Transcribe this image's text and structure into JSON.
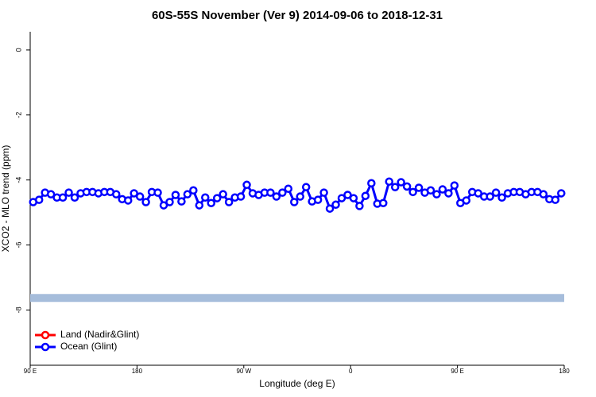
{
  "chart_data": {
    "type": "line",
    "title": "60S-55S November (Ver 9)   2014-09-06 to 2018-12-31",
    "x_label": "Longitude (deg E)",
    "y_label": "XCO2 - MLO trend (ppm)",
    "xlim": [
      90,
      540
    ],
    "xticks": [
      {
        "value": 90,
        "label": "90 E"
      },
      180,
      {
        "value": 270,
        "label": "90 W"
      },
      {
        "value": 360,
        "label": "0"
      },
      {
        "value": 450,
        "label": "90 E"
      },
      {
        "value": 540,
        "label": "180"
      }
    ],
    "ylim": [
      -9.7,
      0.56
    ],
    "yticks": [
      0,
      -2,
      -4,
      -6,
      -8
    ],
    "legend": "bottom-left",
    "band": {
      "value": -7.63,
      "color": "#a6bddb"
    },
    "x": [
      92.5,
      97.5,
      102.5,
      107.5,
      112.5,
      117.5,
      122.5,
      127.5,
      132.5,
      137.5,
      142.5,
      147.5,
      152.5,
      157.5,
      162.5,
      167.5,
      172.5,
      177.5,
      182.5,
      187.5,
      192.5,
      197.5,
      202.5,
      207.5,
      212.5,
      217.5,
      222.5,
      227.5,
      232.5,
      237.5,
      242.5,
      247.5,
      252.5,
      257.5,
      262.5,
      267.5,
      272.5,
      277.5,
      282.5,
      287.5,
      292.5,
      297.5,
      302.5,
      307.5,
      312.5,
      317.5,
      322.5,
      327.5,
      332.5,
      337.5,
      342.5,
      347.5,
      352.5,
      357.5,
      362.5,
      367.5,
      372.5,
      377.5,
      382.5,
      387.5,
      392.5,
      397.5,
      402.5,
      407.5,
      412.5,
      417.5,
      422.5,
      427.5,
      432.5,
      437.5,
      442.5,
      447.5,
      452.5,
      457.5,
      462.5,
      467.5,
      472.5,
      477.5,
      482.5,
      487.5,
      492.5,
      497.5,
      502.5,
      507.5,
      512.5,
      517.5,
      522.5,
      527.5,
      532.5,
      537.5
    ],
    "series": [
      {
        "name": "Land (Nadir&Glint)",
        "color": "#ff0000",
        "values": [
          null,
          null,
          null,
          null,
          null,
          null,
          null,
          null,
          null,
          null,
          null,
          null,
          null,
          null,
          null,
          null,
          null,
          null,
          null,
          null,
          null,
          null,
          null,
          null,
          null,
          null,
          null,
          null,
          null,
          null,
          null,
          null,
          null,
          null,
          null,
          null,
          null,
          null,
          null,
          null,
          null,
          null,
          null,
          null,
          null,
          null,
          null,
          null,
          null,
          null,
          null,
          null,
          null,
          null,
          null,
          null,
          null,
          null,
          null,
          null,
          null,
          null,
          null,
          null,
          null,
          null,
          null,
          null,
          null,
          null,
          null,
          null,
          null,
          null,
          null,
          null,
          null,
          null,
          null,
          null,
          null,
          null,
          null,
          null,
          null,
          null,
          null,
          null,
          null,
          null
        ]
      },
      {
        "name": "Ocean (Glint)",
        "color": "#0000ff",
        "values": [
          -4.68,
          -4.61,
          -4.39,
          -4.44,
          -4.54,
          -4.54,
          -4.39,
          -4.54,
          -4.41,
          -4.37,
          -4.37,
          -4.41,
          -4.37,
          -4.37,
          -4.44,
          -4.59,
          -4.63,
          -4.41,
          -4.51,
          -4.68,
          -4.37,
          -4.39,
          -4.78,
          -4.68,
          -4.46,
          -4.66,
          -4.44,
          -4.32,
          -4.78,
          -4.54,
          -4.71,
          -4.56,
          -4.44,
          -4.68,
          -4.54,
          -4.51,
          -4.15,
          -4.41,
          -4.46,
          -4.39,
          -4.39,
          -4.51,
          -4.39,
          -4.27,
          -4.68,
          -4.51,
          -4.22,
          -4.66,
          -4.61,
          -4.39,
          -4.88,
          -4.76,
          -4.56,
          -4.46,
          -4.56,
          -4.8,
          -4.49,
          -4.1,
          -4.73,
          -4.71,
          -4.05,
          -4.22,
          -4.07,
          -4.2,
          -4.37,
          -4.24,
          -4.39,
          -4.32,
          -4.44,
          -4.29,
          -4.41,
          -4.17,
          -4.71,
          -4.63,
          -4.37,
          -4.41,
          -4.51,
          -4.51,
          -4.39,
          -4.54,
          -4.41,
          -4.37,
          -4.37,
          -4.44,
          -4.37,
          -4.37,
          -4.44,
          -4.59,
          -4.61,
          -4.41
        ]
      }
    ]
  }
}
